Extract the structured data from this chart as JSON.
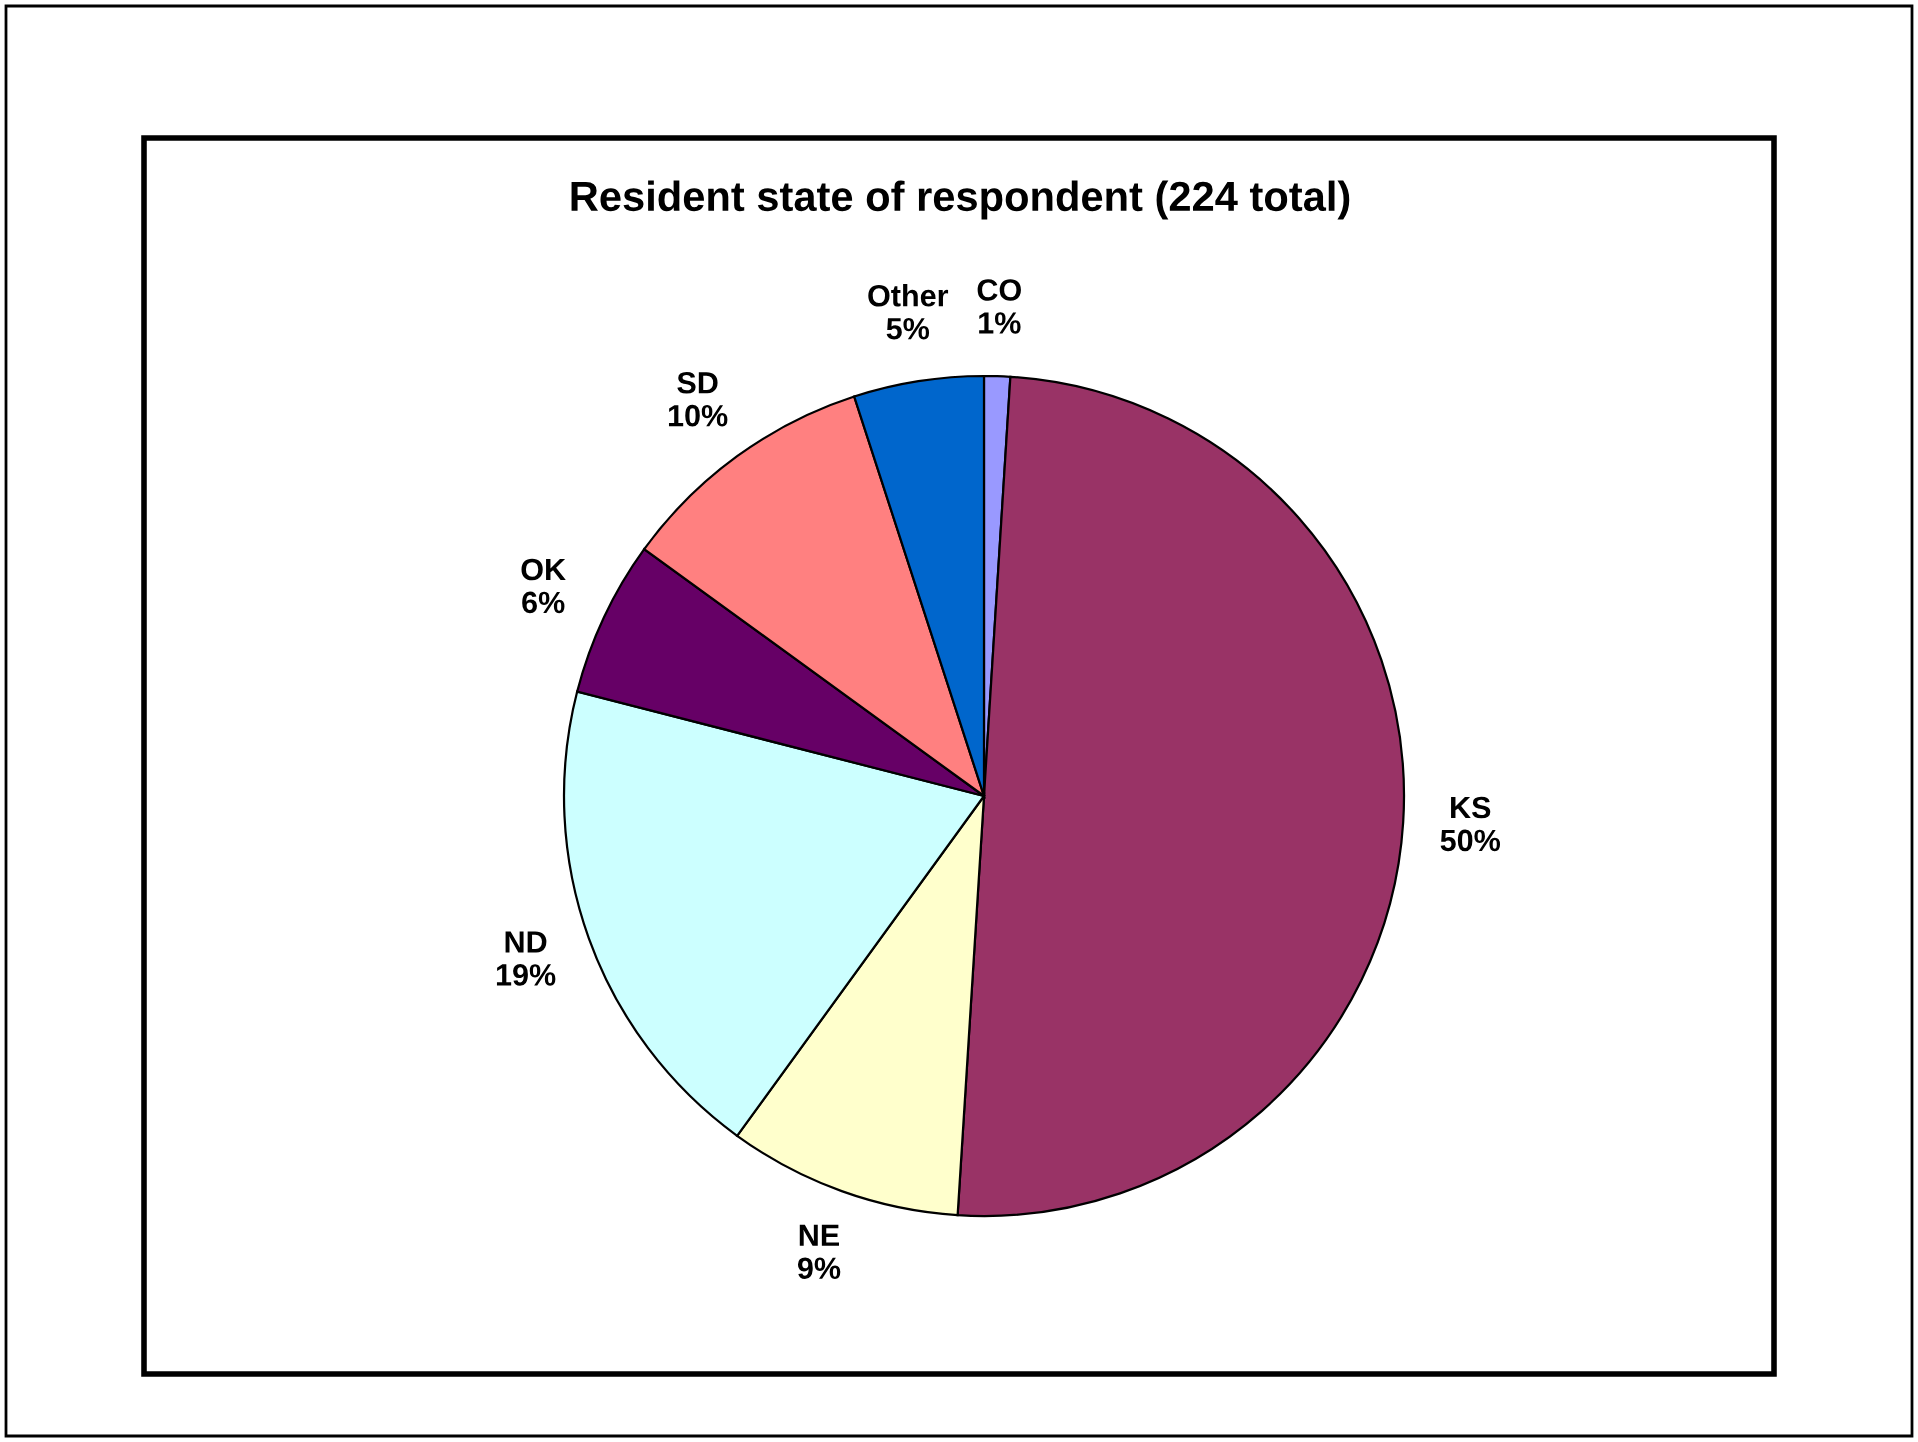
{
  "chart_data": {
    "type": "pie",
    "title": "Resident state of respondent (224 total)",
    "categories": [
      "CO",
      "KS",
      "NE",
      "ND",
      "OK",
      "SD",
      "Other"
    ],
    "values": [
      1,
      50,
      9,
      19,
      6,
      10,
      5
    ],
    "value_labels": [
      "1%",
      "50%",
      "9%",
      "19%",
      "6%",
      "10%",
      "5%"
    ],
    "colors": [
      "#9999ff",
      "#993366",
      "#ffffcc",
      "#ccffff",
      "#660066",
      "#ff8080",
      "#0066cc"
    ]
  }
}
